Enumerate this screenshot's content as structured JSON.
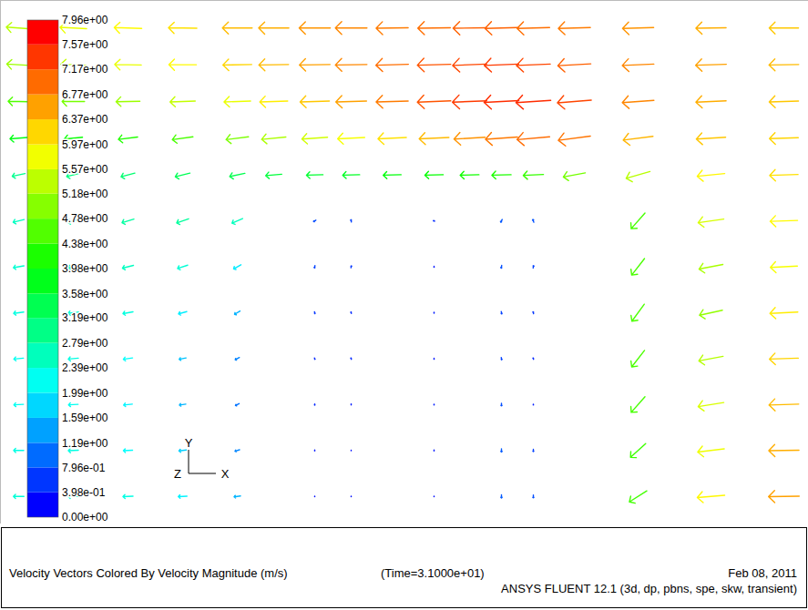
{
  "chart_data": {
    "type": "vector_field",
    "caption": "Velocity Vectors Colored By Velocity Magnitude (m/s)",
    "time_label": "(Time=3.1000e+01)",
    "date": "Feb 08, 2011",
    "software": "ANSYS FLUENT 12.1 (3d, dp, pbns, spe, skw, transient)",
    "axis_triad": {
      "x": "X",
      "y": "Y",
      "z": "Z"
    },
    "tick_labels": false,
    "xlim": [
      0,
      88.7
    ],
    "ylim": [
      0,
      57
    ],
    "x": [
      2,
      8,
      14,
      20,
      26,
      30,
      34.5,
      38.5,
      43,
      47.6,
      51.5,
      55,
      58.5,
      63,
      70,
      78,
      86
    ],
    "y": [
      54,
      50,
      46,
      42,
      38,
      33,
      28,
      23,
      18,
      13,
      8,
      3
    ],
    "u": [
      [
        -5.4,
        -5.8,
        -6.0,
        -6.2,
        -6.5,
        -6.6,
        -6.8,
        -6.9,
        -7.0,
        -7.1,
        -7.2,
        -7.2,
        -7.1,
        -7.0,
        -6.8,
        -6.6,
        -6.4
      ],
      [
        -5.2,
        -5.5,
        -5.8,
        -6.0,
        -6.3,
        -6.5,
        -6.7,
        -6.9,
        -7.1,
        -7.3,
        -7.4,
        -7.5,
        -7.4,
        -7.2,
        -6.9,
        -6.7,
        -6.5
      ],
      [
        -4.6,
        -4.9,
        -5.2,
        -5.5,
        -5.8,
        -6.1,
        -6.4,
        -6.7,
        -7.0,
        -7.3,
        -7.5,
        -7.6,
        -7.6,
        -7.4,
        -6.9,
        -6.6,
        -6.4
      ],
      [
        -3.8,
        -4.0,
        -4.2,
        -4.5,
        -4.9,
        -5.3,
        -5.6,
        -5.9,
        -6.2,
        -6.5,
        -6.8,
        -7.0,
        -7.1,
        -7.0,
        -6.5,
        -6.4,
        -6.3
      ],
      [
        -2.8,
        -2.9,
        -3.0,
        -3.2,
        -3.3,
        -3.5,
        -3.6,
        -3.7,
        -3.9,
        -4.0,
        -4.1,
        -4.2,
        -4.4,
        -4.8,
        -5.2,
        -6.0,
        -6.2
      ],
      [
        -2.4,
        -2.5,
        -2.6,
        -2.6,
        -2.3,
        null,
        -0.5,
        -0.1,
        null,
        -0.3,
        null,
        -0.3,
        -0.2,
        null,
        -3.0,
        -5.6,
        -6.0
      ],
      [
        -2.3,
        -2.4,
        -2.4,
        -2.2,
        -1.6,
        null,
        -0.1,
        0.1,
        null,
        0.0,
        null,
        -0.1,
        0.1,
        null,
        -2.8,
        -5.2,
        -5.9
      ],
      [
        -2.2,
        -2.3,
        -2.2,
        -1.8,
        -1.2,
        null,
        0.1,
        -0.1,
        null,
        0.0,
        null,
        0.1,
        -0.1,
        null,
        -2.7,
        -5.0,
        -6.1
      ],
      [
        -2.1,
        -2.2,
        -2.0,
        -1.5,
        -0.9,
        null,
        0.1,
        -0.1,
        null,
        0.0,
        null,
        0.1,
        -0.1,
        null,
        -2.8,
        -5.3,
        -6.3
      ],
      [
        -2.1,
        -2.1,
        -1.9,
        -1.4,
        -0.8,
        null,
        0.0,
        0.0,
        null,
        0.0,
        null,
        0.0,
        0.0,
        null,
        -3.0,
        -5.6,
        -6.5
      ],
      [
        -2.2,
        -2.2,
        -2.0,
        -1.6,
        -1.0,
        null,
        0.0,
        0.0,
        null,
        0.0,
        null,
        0.0,
        0.0,
        null,
        -3.3,
        -5.8,
        -6.6
      ],
      [
        -2.3,
        -2.3,
        -2.2,
        -1.9,
        -1.4,
        null,
        0.0,
        0.0,
        null,
        0.0,
        null,
        0.0,
        0.0,
        null,
        -3.8,
        -6.0,
        -6.7
      ]
    ],
    "v": [
      [
        0.4,
        0.3,
        0.2,
        0.1,
        0.0,
        0.0,
        0.0,
        0.0,
        -0.1,
        -0.1,
        -0.1,
        -0.2,
        -0.2,
        -0.2,
        -0.2,
        -0.1,
        0.0
      ],
      [
        0.3,
        0.2,
        0.1,
        0.0,
        -0.1,
        -0.1,
        -0.1,
        -0.1,
        -0.2,
        -0.2,
        -0.3,
        -0.3,
        -0.3,
        -0.4,
        -0.3,
        -0.2,
        -0.1
      ],
      [
        0.1,
        0.0,
        -0.1,
        -0.2,
        -0.2,
        -0.2,
        -0.2,
        -0.2,
        -0.2,
        -0.3,
        -0.3,
        -0.4,
        -0.5,
        -0.6,
        -0.5,
        -0.3,
        -0.2
      ],
      [
        -0.3,
        -0.4,
        -0.5,
        -0.6,
        -0.6,
        -0.5,
        -0.4,
        -0.3,
        -0.3,
        -0.3,
        -0.4,
        -0.5,
        -0.6,
        -0.9,
        -0.8,
        -0.4,
        -0.2
      ],
      [
        -0.6,
        -0.7,
        -0.8,
        -0.8,
        -0.7,
        -0.3,
        -0.1,
        -0.1,
        -0.1,
        -0.1,
        -0.1,
        -0.1,
        -0.2,
        -0.9,
        -1.5,
        -0.6,
        -0.2
      ],
      [
        -0.6,
        -0.7,
        -0.8,
        -0.9,
        -1.0,
        null,
        -0.3,
        0.5,
        null,
        0.1,
        null,
        -0.6,
        0.6,
        null,
        -3.4,
        -0.8,
        -0.2
      ],
      [
        -0.4,
        -0.5,
        -0.6,
        -0.7,
        -0.9,
        null,
        -0.5,
        0.4,
        null,
        -0.2,
        null,
        -0.6,
        0.5,
        null,
        -3.6,
        -1.0,
        -0.3
      ],
      [
        -0.3,
        -0.3,
        -0.4,
        -0.5,
        -0.7,
        null,
        -0.4,
        0.3,
        null,
        -0.2,
        null,
        -0.5,
        0.4,
        null,
        -3.7,
        -1.1,
        -0.3
      ],
      [
        -0.2,
        -0.2,
        -0.3,
        -0.3,
        -0.5,
        null,
        -0.3,
        0.3,
        null,
        -0.2,
        null,
        -0.5,
        0.3,
        null,
        -3.6,
        -1.0,
        -0.2
      ],
      [
        -0.1,
        -0.1,
        -0.2,
        -0.2,
        -0.4,
        null,
        -0.3,
        0.2,
        null,
        -0.2,
        null,
        -0.6,
        -0.2,
        null,
        -3.4,
        -0.9,
        -0.2
      ],
      [
        0.0,
        -0.1,
        -0.1,
        -0.2,
        -0.3,
        null,
        -0.2,
        -0.1,
        null,
        -0.2,
        null,
        -0.7,
        -0.5,
        null,
        -3.0,
        -0.7,
        -0.1
      ],
      [
        0.0,
        0.0,
        -0.1,
        -0.1,
        -0.2,
        null,
        -0.1,
        -0.1,
        null,
        -0.1,
        null,
        -0.7,
        -0.6,
        null,
        -2.4,
        -0.5,
        -0.1
      ]
    ],
    "obstacles": [
      {
        "x": [
          27,
          32.5
        ],
        "y": [
          0,
          36.5
        ]
      },
      {
        "x": [
          40.8,
          45.5
        ],
        "y": [
          0,
          36.5
        ]
      },
      {
        "x": [
          49.8,
          53.5
        ],
        "y": [
          0,
          36.5
        ]
      },
      {
        "x": [
          60,
          65.5
        ],
        "y": [
          0,
          36.5
        ]
      }
    ],
    "colorbar": {
      "range": [
        0,
        7.96
      ],
      "ticks": [
        {
          "value": 0,
          "label": "0.00e+00"
        },
        {
          "value": 0.398,
          "label": "3.98e-01"
        },
        {
          "value": 0.796,
          "label": "7.96e-01"
        },
        {
          "value": 1.19,
          "label": "1.19e+00"
        },
        {
          "value": 1.59,
          "label": "1.59e+00"
        },
        {
          "value": 1.99,
          "label": "1.99e+00"
        },
        {
          "value": 2.39,
          "label": "2.39e+00"
        },
        {
          "value": 2.79,
          "label": "2.79e+00"
        },
        {
          "value": 3.19,
          "label": "3.19e+00"
        },
        {
          "value": 3.58,
          "label": "3.58e+00"
        },
        {
          "value": 3.98,
          "label": "3.98e+00"
        },
        {
          "value": 4.38,
          "label": "4.38e+00"
        },
        {
          "value": 4.78,
          "label": "4.78e+00"
        },
        {
          "value": 5.18,
          "label": "5.18e+00"
        },
        {
          "value": 5.57,
          "label": "5.57e+00"
        },
        {
          "value": 5.97,
          "label": "5.97e+00"
        },
        {
          "value": 6.37,
          "label": "6.37e+00"
        },
        {
          "value": 6.77,
          "label": "6.77e+00"
        },
        {
          "value": 7.17,
          "label": "7.17e+00"
        },
        {
          "value": 7.57,
          "label": "7.57e+00"
        },
        {
          "value": 7.96,
          "label": "7.96e+00"
        }
      ]
    }
  }
}
